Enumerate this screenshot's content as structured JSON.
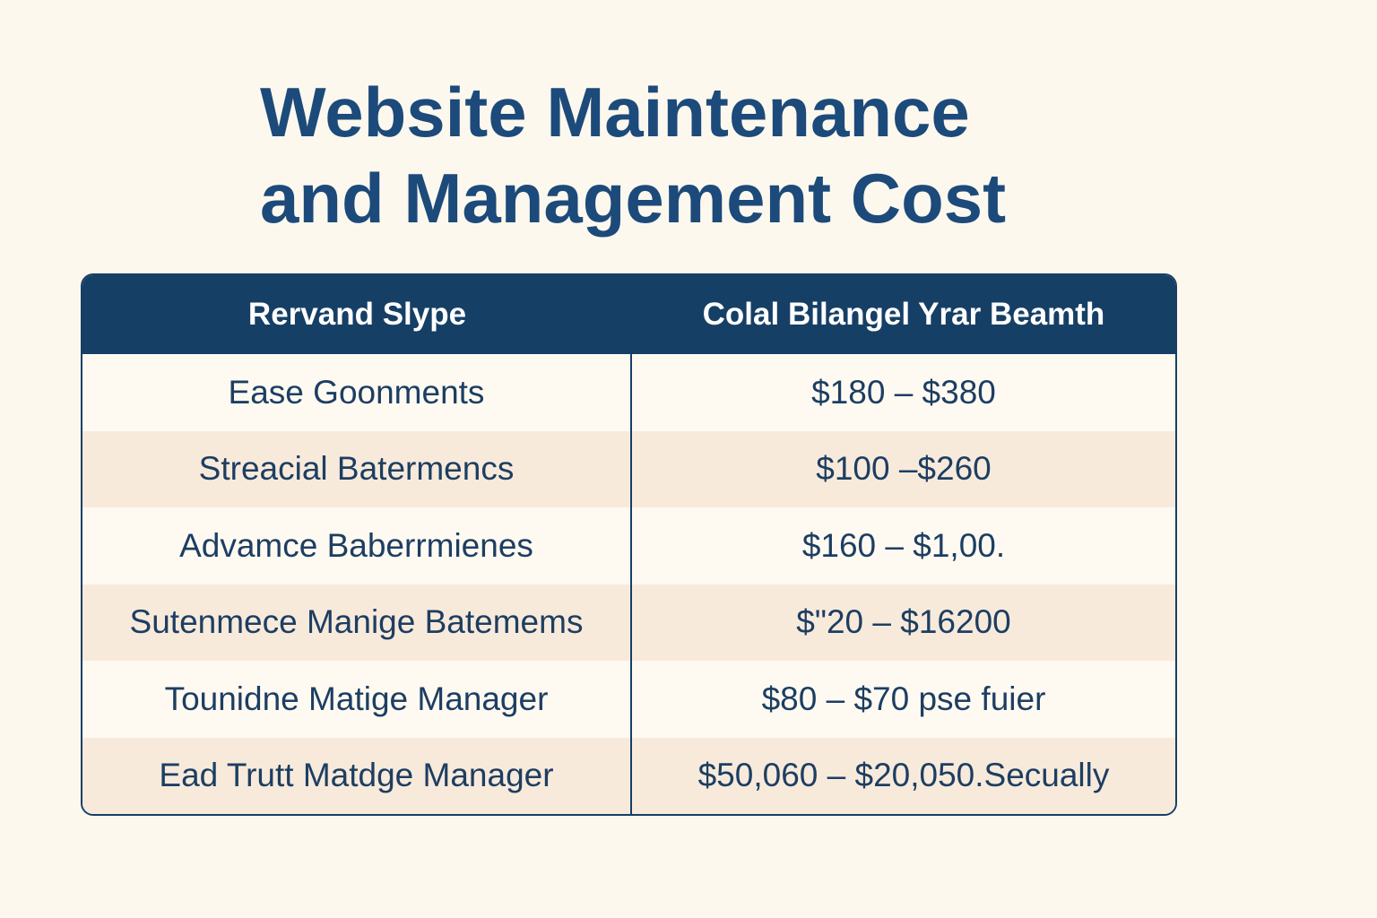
{
  "colors": {
    "background": "#fdf8ee",
    "title": "#1c4a7a",
    "header_bg": "#163f66",
    "header_text": "#ffffff",
    "row_light": "#fefaf2",
    "row_shade": "#f8eadb",
    "border": "#163f66",
    "cell_text": "#1d3e62"
  },
  "chart_data": {
    "type": "table",
    "title": "Website Maintenance and Management Cost",
    "columns": [
      "Rervand Slype",
      "Colal Bilangel Yrar Beamth"
    ],
    "rows": [
      [
        "Ease Goonments",
        "$180 – $380"
      ],
      [
        "Streacial Batermencs",
        "$100 –$260"
      ],
      [
        "Advamce Baberrmienes",
        "$160 – $1,00."
      ],
      [
        "Sutenmece Manige Batemems",
        "$\"20 – $16200"
      ],
      [
        "Tounidne Matige Manager",
        "$80 – $70 pse fuier"
      ],
      [
        "Ead Trutt Matdge Manager",
        "$50,060 – $20,050.Secually"
      ]
    ]
  }
}
